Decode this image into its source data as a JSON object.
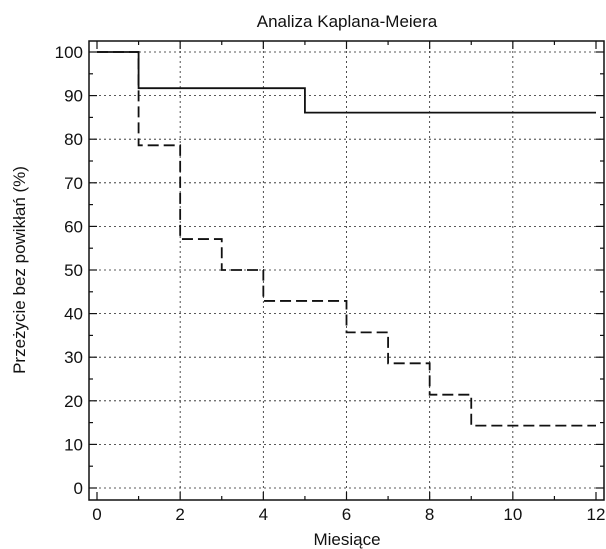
{
  "chart_data": {
    "type": "line",
    "step": true,
    "title": "Analiza Kaplana-Meiera",
    "xlabel": "Miesiące",
    "ylabel": "Przeżycie bez powikłań (%)",
    "xlim": [
      0,
      12
    ],
    "ylim": [
      0,
      100
    ],
    "xticks": [
      "0",
      "2",
      "4",
      "6",
      "8",
      "10",
      "12"
    ],
    "yticks": [
      "0",
      "10",
      "20",
      "30",
      "40",
      "50",
      "60",
      "70",
      "80",
      "90",
      "100"
    ],
    "grid": true,
    "series": [
      {
        "style": "solid",
        "x": [
          0,
          1,
          5,
          12
        ],
        "y": [
          100,
          91.7,
          86.1,
          86.1
        ]
      },
      {
        "style": "dashed",
        "x": [
          0,
          1,
          2,
          3,
          4,
          6,
          7,
          8,
          9,
          12
        ],
        "y": [
          100,
          78.6,
          57.1,
          50.0,
          42.9,
          35.7,
          28.6,
          21.4,
          14.3,
          14.3
        ]
      }
    ]
  }
}
